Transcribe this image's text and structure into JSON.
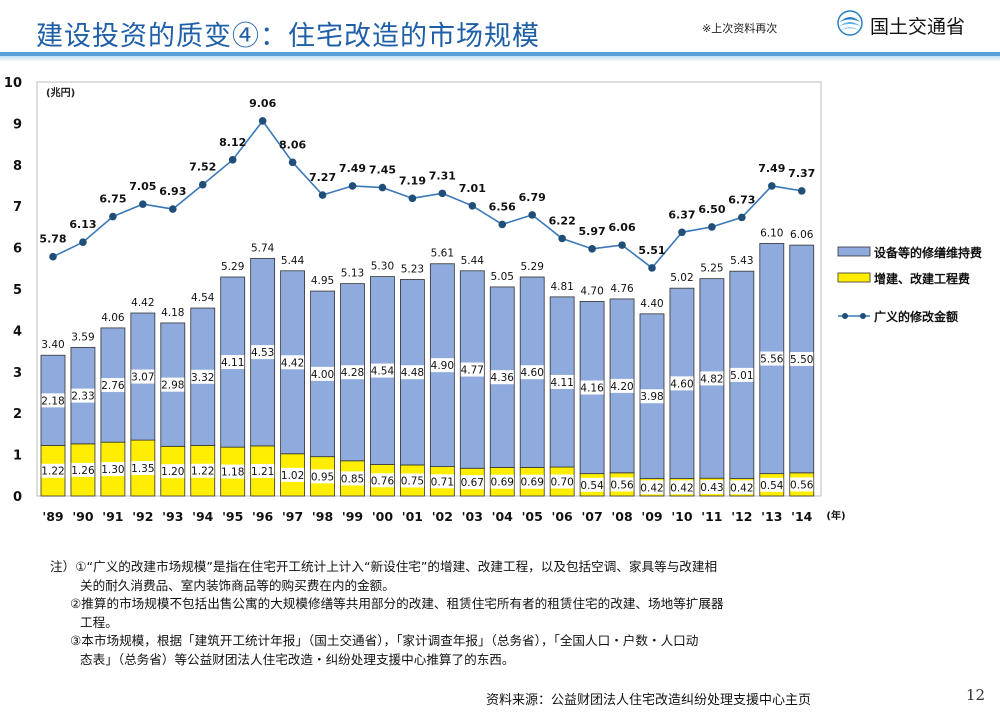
{
  "header": {
    "title": "建设投资的质变④：住宅改造的市场规模",
    "note": "※上次资料再次",
    "logo_text": "国土交通省"
  },
  "chart_data": {
    "type": "bar",
    "stacked": true,
    "categories": [
      "'89",
      "'90",
      "'91",
      "'92",
      "'93",
      "'94",
      "'95",
      "'96",
      "'97",
      "'98",
      "'99",
      "'00",
      "'01",
      "'02",
      "'03",
      "'04",
      "'05",
      "'06",
      "'07",
      "'08",
      "'09",
      "'10",
      "'11",
      "'12",
      "'13",
      "'14"
    ],
    "x_unit": "(年)",
    "y_unit": "(兆円)",
    "ylim": [
      0,
      10
    ],
    "yticks": [
      "0",
      "1",
      "2",
      "3",
      "4",
      "5",
      "6",
      "7",
      "8",
      "9",
      "10"
    ],
    "series": [
      {
        "name": "增建、改建工程费",
        "color": "#ffee00",
        "values": [
          1.22,
          1.26,
          1.3,
          1.35,
          1.2,
          1.22,
          1.18,
          1.21,
          1.02,
          0.95,
          0.85,
          0.76,
          0.75,
          0.71,
          0.67,
          0.69,
          0.69,
          0.7,
          0.54,
          0.56,
          0.42,
          0.42,
          0.43,
          0.42,
          0.54,
          0.56
        ],
        "labels": [
          "1.22",
          "1.26",
          "1.30",
          "1.35",
          "1.20",
          "1.22",
          "1.18",
          "1.21",
          "1.02",
          "0.95",
          "0.85",
          "0.76",
          "0.75",
          "0.71",
          "0.67",
          "0.69",
          "0.69",
          "0.70",
          "0.54",
          "0.56",
          "0.42",
          "0.42",
          "0.43",
          "0.42",
          "0.54",
          "0.56"
        ]
      },
      {
        "name": "设备等的修缮维持费",
        "color": "#8faadc",
        "values": [
          2.18,
          2.33,
          2.76,
          3.07,
          2.98,
          3.32,
          4.11,
          4.53,
          4.42,
          4.0,
          4.28,
          4.54,
          4.48,
          4.9,
          4.77,
          4.36,
          4.6,
          4.11,
          4.16,
          4.2,
          3.98,
          4.6,
          4.82,
          5.01,
          5.56,
          5.5
        ],
        "labels": [
          "2.18",
          "2.33",
          "2.76",
          "3.07",
          "2.98",
          "3.32",
          "4.11",
          "4.53",
          "4.42",
          "4.00",
          "4.28",
          "4.54",
          "4.48",
          "4.90",
          "4.77",
          "4.36",
          "4.60",
          "4.11",
          "4.16",
          "4.20",
          "3.98",
          "4.60",
          "4.82",
          "5.01",
          "5.56",
          "5.50"
        ]
      }
    ],
    "totals": {
      "values": [
        3.4,
        3.59,
        4.06,
        4.42,
        4.18,
        4.54,
        5.29,
        5.74,
        5.44,
        4.95,
        5.13,
        5.3,
        5.23,
        5.61,
        5.44,
        5.05,
        5.29,
        4.81,
        4.7,
        4.76,
        4.4,
        5.02,
        5.25,
        5.43,
        6.1,
        6.06
      ],
      "labels": [
        "3.40",
        "3.59",
        "4.06",
        "4.42",
        "4.18",
        "4.54",
        "5.29",
        "5.74",
        "5.44",
        "4.95",
        "5.13",
        "5.30",
        "5.23",
        "5.61",
        "5.44",
        "5.05",
        "5.29",
        "4.81",
        "4.70",
        "4.76",
        "4.40",
        "5.02",
        "5.25",
        "5.43",
        "6.10",
        "6.06"
      ]
    },
    "line": {
      "name": "广义的修改金额",
      "type": "line",
      "color": "#1f4e79",
      "values": [
        5.78,
        6.13,
        6.75,
        7.05,
        6.93,
        7.52,
        8.12,
        9.06,
        8.06,
        7.27,
        7.49,
        7.45,
        7.19,
        7.31,
        7.01,
        6.56,
        6.79,
        6.22,
        5.97,
        6.06,
        5.51,
        6.37,
        6.5,
        6.73,
        7.49,
        7.37
      ],
      "labels": [
        "5.78",
        "6.13",
        "6.75",
        "7.05",
        "6.93",
        "7.52",
        "8.12",
        "9.06",
        "8.06",
        "7.27",
        "7.49",
        "7.45",
        "7.19",
        "7.31",
        "7.01",
        "6.56",
        "6.79",
        "6.22",
        "5.97",
        "6.06",
        "5.51",
        "6.37",
        "6.50",
        "6.73",
        "7.49",
        "7.37"
      ]
    },
    "legend": [
      {
        "label": "设备等的修缮维持费",
        "kind": "bar",
        "color": "#8faadc"
      },
      {
        "label": "增建、改建工程费",
        "kind": "bar",
        "color": "#ffee00"
      },
      {
        "label": "广义的修改金额",
        "kind": "line",
        "color": "#1f4e79"
      }
    ],
    "legend_position": "right"
  },
  "notes": {
    "line1": "注）①“广义的改建市场规模”是指在住宅开工统计上计入“新设住宅”的增建、改建工程，以及包括空调、家具等与改建相",
    "line2": "关的耐久消费品、室内装饰商品等的购买费在内的金额。",
    "line3": "②推算的市场规模不包括出售公寓的大规模修缮等共用部分的改建、租赁住宅所有者的租赁住宅的改建、场地等扩展器",
    "line4": "工程。",
    "line5": "③本市场规模，根据「建筑开工统计年报」（国土交通省），「家计调查年报」（总务省），「全国人口・户数・人口动",
    "line6": "态表」（总务省）等公益财团法人住宅改造・纠纷处理支援中心推算了的东西。"
  },
  "footer": {
    "source": "资料来源：公益财团法人住宅改造纠纷处理支援中心主页",
    "page_number": "12"
  }
}
